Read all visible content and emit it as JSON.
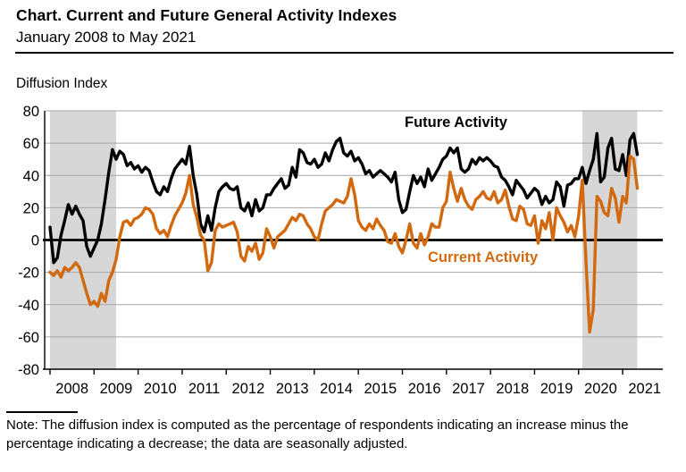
{
  "header": {
    "title": "Chart. Current and Future General Activity Indexes",
    "subtitle": "January 2008 to May 2021"
  },
  "y_axis_title": "Diffusion Index",
  "note": {
    "line1": "Note: The diffusion index is computed as the percentage of respondents indicating an increase",
    "line2": "minus the percentage indicating a decrease; the data are seasonally adjusted."
  },
  "colors": {
    "future_line": "#000000",
    "current_line": "#D2690F",
    "recession_band": "#D7D7D7",
    "gridline": "#A6A6A6",
    "axis": "#000000"
  },
  "chart_data": {
    "type": "line",
    "title": "Chart. Current and Future General Activity Indexes",
    "subtitle": "January 2008 to May 2021",
    "ylabel": "Diffusion Index",
    "ylim": [
      -80,
      80
    ],
    "ytick_step": 20,
    "grid": "horizontal",
    "zero_line": true,
    "x_frequency": "monthly",
    "x_start": "2008-01",
    "x_end": "2021-05",
    "x_tick_years": [
      2008,
      2009,
      2010,
      2011,
      2012,
      2013,
      2014,
      2015,
      2016,
      2017,
      2018,
      2019,
      2020,
      2021
    ],
    "recession_bands": [
      {
        "from": "2008-01",
        "to": "2009-07"
      },
      {
        "from": "2020-02",
        "to": "2021-05"
      }
    ],
    "legend_position": "inline-annotations",
    "series": [
      {
        "name": "Future Activity",
        "color": "#000000",
        "values": [
          8,
          -14,
          -11,
          3,
          12,
          22,
          16,
          21,
          16,
          12,
          -4,
          -10,
          -5,
          0,
          10,
          25,
          42,
          56,
          50,
          55,
          53,
          46,
          48,
          44,
          46,
          42,
          45,
          43,
          36,
          30,
          28,
          33,
          30,
          38,
          44,
          47,
          50,
          47,
          58,
          40,
          28,
          10,
          5,
          15,
          6,
          20,
          30,
          33,
          35,
          32,
          31,
          33,
          20,
          18,
          23,
          15,
          25,
          18,
          20,
          28,
          28,
          32,
          35,
          38,
          32,
          34,
          45,
          39,
          56,
          54,
          48,
          47,
          50,
          45,
          47,
          54,
          49,
          56,
          61,
          63,
          54,
          52,
          55,
          49,
          51,
          47,
          41,
          43,
          39,
          41,
          43,
          41,
          39,
          36,
          42,
          25,
          17,
          19,
          30,
          40,
          35,
          39,
          33,
          44,
          37,
          41,
          45,
          50,
          52,
          57,
          54,
          57,
          44,
          42,
          44,
          50,
          47,
          51,
          49,
          51,
          49,
          46,
          45,
          39,
          37,
          33,
          28,
          37,
          34,
          31,
          26,
          29,
          32,
          30,
          22,
          27,
          23,
          25,
          36,
          33,
          21,
          34,
          35,
          38,
          38,
          45,
          35,
          43,
          50,
          66,
          36,
          39,
          57,
          63,
          44,
          43,
          53,
          40,
          62,
          66,
          53
        ]
      },
      {
        "name": "Current Activity",
        "color": "#D2690F",
        "values": [
          -20,
          -22,
          -19,
          -23,
          -17,
          -19,
          -17,
          -14,
          -17,
          -25,
          -33,
          -40,
          -38,
          -41,
          -33,
          -38,
          -25,
          -20,
          -12,
          2,
          11,
          12,
          9,
          13,
          14,
          16,
          20,
          19,
          16,
          7,
          4,
          6,
          2,
          9,
          15,
          19,
          23,
          29,
          40,
          22,
          14,
          3,
          0,
          -19,
          -14,
          6,
          10,
          8,
          9,
          10,
          11,
          5,
          -10,
          -13,
          -4,
          -7,
          -2,
          -12,
          -8,
          7,
          2,
          -5,
          2,
          4,
          6,
          10,
          14,
          12,
          16,
          15,
          10,
          7,
          2,
          0,
          10,
          18,
          20,
          22,
          25,
          24,
          23,
          27,
          38,
          28,
          12,
          8,
          6,
          10,
          7,
          13,
          9,
          6,
          -1,
          -2,
          4,
          -4,
          -8,
          0,
          10,
          -2,
          -5,
          4,
          -3,
          2,
          10,
          8,
          8,
          20,
          24,
          42,
          32,
          24,
          32,
          25,
          21,
          19,
          25,
          27,
          30,
          26,
          25,
          30,
          23,
          25,
          31,
          21,
          13,
          12,
          21,
          19,
          10,
          9,
          15,
          -2,
          12,
          7,
          17,
          0,
          20,
          15,
          11,
          5,
          9,
          2,
          15,
          37,
          -13,
          -57,
          -43,
          27,
          24,
          17,
          15,
          32,
          26,
          11,
          27,
          23,
          52,
          50,
          32
        ]
      }
    ]
  }
}
